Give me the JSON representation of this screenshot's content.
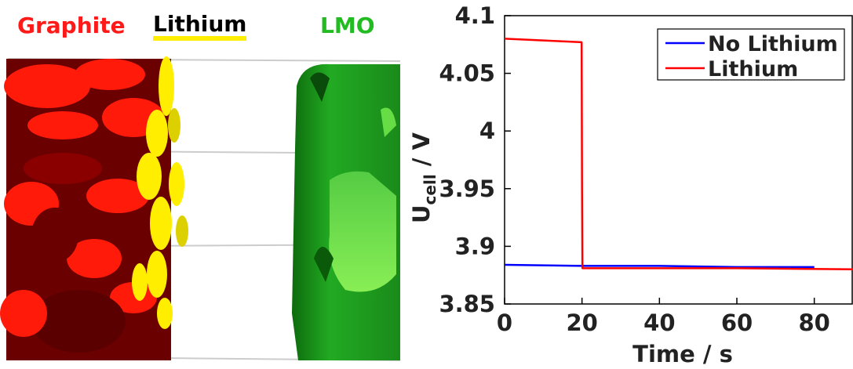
{
  "scene": {
    "labels": [
      {
        "text": "Graphite",
        "color": "#ff1a1a"
      },
      {
        "text": "Lithium",
        "color": "#000000",
        "underline_color": "#ffee00"
      },
      {
        "text": "LMO",
        "color": "#22bb22"
      }
    ],
    "colors": {
      "graphite_dark": "#6b0000",
      "graphite_bright": "#ff1a0a",
      "lithium": "#ffee00",
      "lmo": "#22aa22",
      "lmo_light": "#66dd44"
    }
  },
  "chart_data": {
    "type": "line",
    "xlabel": "Time  /  s",
    "ylabel_main": "U",
    "ylabel_sub": "cell",
    "ylabel_unit": "/  V",
    "xlim": [
      0,
      90
    ],
    "ylim": [
      3.85,
      4.1
    ],
    "xticks": [
      0,
      20,
      40,
      60,
      80
    ],
    "yticks": [
      3.85,
      3.9,
      3.95,
      4.0,
      4.05,
      4.1
    ],
    "ytick_labels": [
      "3.85",
      "3.9",
      "3.95",
      "4",
      "4.05",
      "4.1"
    ],
    "grid": false,
    "legend_position": "top-right",
    "series": [
      {
        "name": "No Lithium",
        "color": "#0000ff",
        "x": [
          0,
          20,
          40,
          60,
          80
        ],
        "y": [
          3.884,
          3.883,
          3.883,
          3.882,
          3.882
        ]
      },
      {
        "name": "Lithium",
        "color": "#ff0000",
        "x": [
          0,
          19.9,
          20.0,
          20.1,
          40,
          60,
          90
        ],
        "y": [
          4.08,
          4.077,
          3.95,
          3.881,
          3.881,
          3.881,
          3.88
        ]
      }
    ]
  }
}
